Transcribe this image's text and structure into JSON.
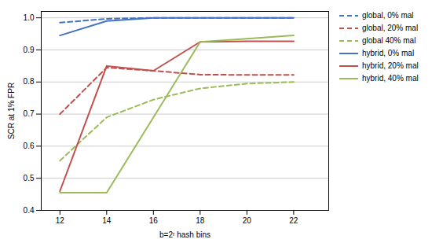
{
  "chart_data": {
    "type": "line",
    "xlabel": "b=2ʳ hash bins",
    "ylabel": "SCR at 1% FPR",
    "x": [
      12,
      14,
      16,
      18,
      20,
      22
    ],
    "series": [
      {
        "name": "global, 0% mal",
        "color": "#4472C4",
        "line_style": "dashed",
        "values": [
          0.985,
          0.997,
          1.0,
          1.0,
          1.0,
          1.0
        ]
      },
      {
        "name": "global, 20% mal",
        "color": "#C0504D",
        "line_style": "dashed",
        "values": [
          0.7,
          0.845,
          0.835,
          0.823,
          0.822,
          0.822
        ]
      },
      {
        "name": "global 40% mal",
        "color": "#9BBB59",
        "line_style": "dashed",
        "values": [
          0.555,
          0.69,
          0.745,
          0.78,
          0.795,
          0.8
        ]
      },
      {
        "name": "hybrid, 0% mal",
        "color": "#4472C4",
        "line_style": "solid",
        "values": [
          0.945,
          0.99,
          1.0,
          1.0,
          1.0,
          1.0
        ]
      },
      {
        "name": "hybrid, 20% mal",
        "color": "#C0504D",
        "line_style": "solid",
        "values": [
          0.46,
          0.85,
          0.835,
          0.925,
          0.927,
          0.927
        ]
      },
      {
        "name": "hybrid, 40% mal",
        "color": "#9BBB59",
        "line_style": "solid",
        "values": [
          0.455,
          0.455,
          0.69,
          0.925,
          0.935,
          0.945
        ]
      }
    ],
    "xlim": [
      11.2,
      23.5
    ],
    "ylim": [
      0.4,
      1.02
    ],
    "xticks": [
      12,
      14,
      16,
      18,
      20,
      22
    ],
    "yticks": [
      0.4,
      0.5,
      0.6,
      0.7,
      0.8,
      0.9,
      {
        "value": 1.0,
        "label": "1.0"
      }
    ],
    "grid": "y",
    "legend": "right"
  }
}
